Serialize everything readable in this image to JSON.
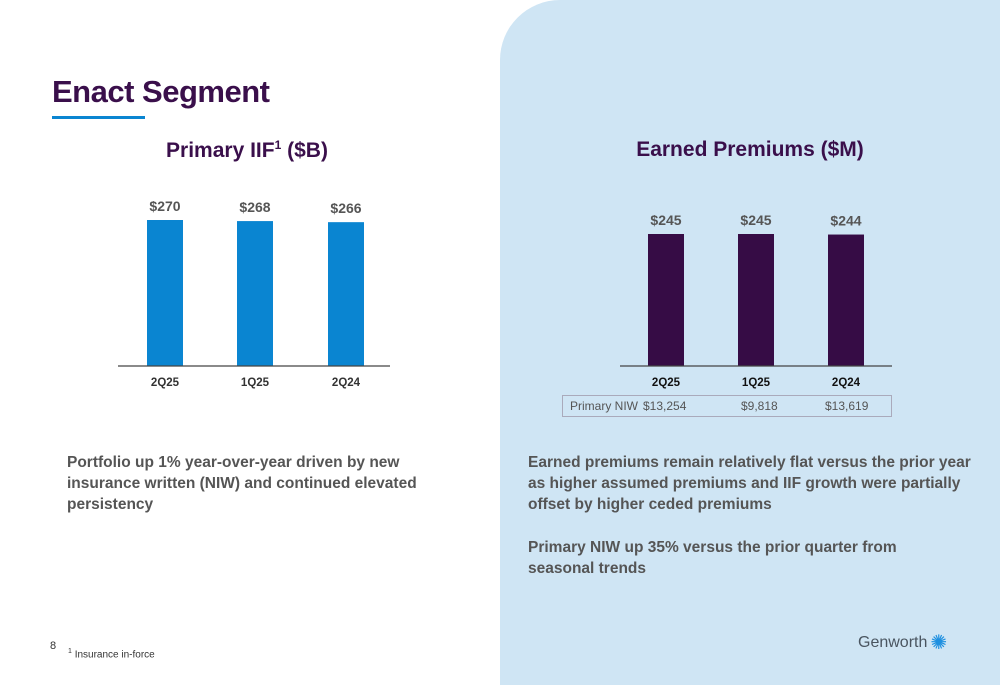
{
  "title": "Enact Segment",
  "chart_data": [
    {
      "type": "bar",
      "title": "Primary IIF",
      "title_sup": "1",
      "title_suffix": "($B)",
      "categories": [
        "2Q25",
        "1Q25",
        "2Q24"
      ],
      "values": [
        270,
        268,
        266
      ],
      "labels": [
        "$270",
        "$268",
        "$266"
      ],
      "color": "#0a85d1",
      "ylim": [
        0,
        270
      ]
    },
    {
      "type": "bar",
      "title": "Earned Premiums ($M)",
      "categories": [
        "2Q25",
        "1Q25",
        "2Q24"
      ],
      "values": [
        245,
        245,
        244
      ],
      "labels": [
        "$245",
        "$245",
        "$244"
      ],
      "color": "#360c45",
      "ylim": [
        0,
        245
      ]
    }
  ],
  "niw_table": {
    "label": "Primary NIW",
    "values": [
      "$13,254",
      "$9,818",
      "$13,619"
    ]
  },
  "left_text": "Portfolio up 1% year-over-year driven by new insurance written (NIW) and continued elevated persistency",
  "right_text_1": "Earned premiums remain relatively flat versus the prior year as higher assumed premiums and IIF growth were partially offset by higher ceded premiums",
  "right_text_2": "Primary NIW up 35% versus the prior quarter from seasonal trends",
  "page_number": "8",
  "footnote": {
    "sup": "1",
    "text": "Insurance in-force"
  },
  "logo": "Genworth"
}
